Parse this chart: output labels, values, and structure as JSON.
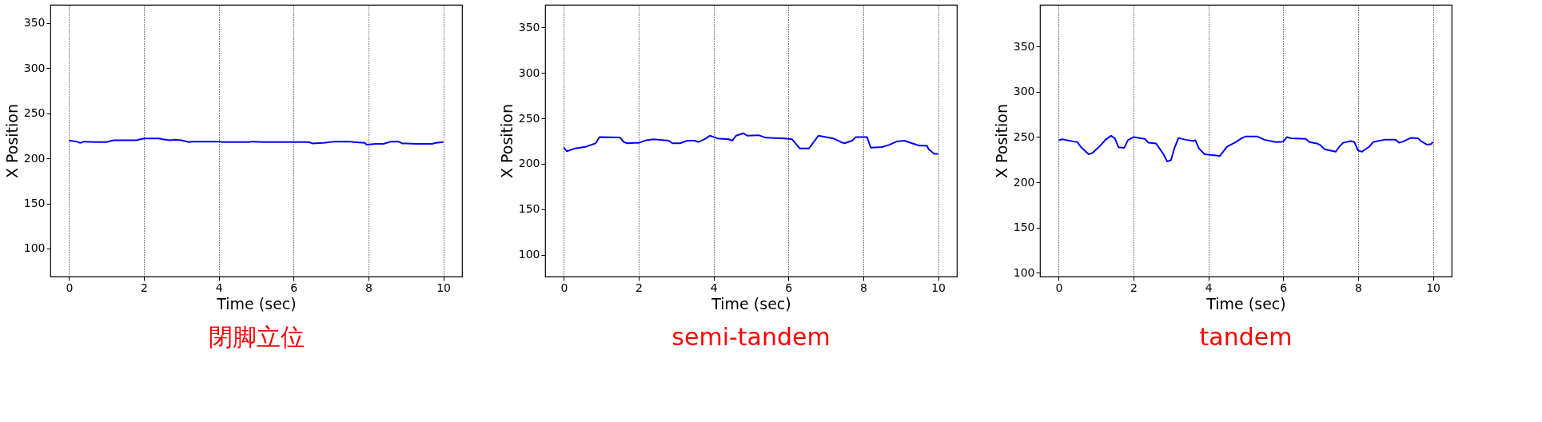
{
  "chart_data": [
    {
      "type": "line",
      "title": "閉脚立位",
      "xlabel": "Time (sec)",
      "ylabel": "X Position",
      "xlim": [
        -0.5,
        10.5
      ],
      "ylim": [
        69,
        370
      ],
      "xticks": [
        0,
        2,
        4,
        6,
        8,
        10
      ],
      "yticks": [
        100,
        150,
        200,
        250,
        300,
        350
      ],
      "grid": "x",
      "x": [
        0,
        0.2,
        0.3,
        0.4,
        0.7,
        1.0,
        1.1,
        1.2,
        1.8,
        2.0,
        2.4,
        2.5,
        2.7,
        2.8,
        3.0,
        3.2,
        3.3,
        4.0,
        4.1,
        4.8,
        4.9,
        5.2,
        6.4,
        6.5,
        6.8,
        7.1,
        7.5,
        7.6,
        7.9,
        7.95,
        8.2,
        8.4,
        8.6,
        8.8,
        8.9,
        9.3,
        9.7,
        9.8,
        10
      ],
      "series": [
        {
          "color": "#0000ff",
          "values": [
            219.8,
            218.5,
            217,
            218.5,
            218,
            218,
            219,
            220,
            220,
            222,
            222,
            221,
            220,
            220.5,
            220,
            218,
            218.5,
            218.5,
            218,
            218,
            218.5,
            218,
            218,
            216.5,
            217,
            218.5,
            218.5,
            218,
            217,
            215,
            216,
            216,
            218.5,
            218.5,
            216.5,
            216,
            216,
            217,
            218
          ]
        }
      ]
    },
    {
      "type": "line",
      "title": "semi-tandem",
      "xlabel": "Time (sec)",
      "ylabel": "X Position",
      "xlim": [
        -0.5,
        10.5
      ],
      "ylim": [
        76,
        375
      ],
      "xticks": [
        0,
        2,
        4,
        6,
        8,
        10
      ],
      "yticks": [
        100,
        150,
        200,
        250,
        300,
        350
      ],
      "grid": "x",
      "x": [
        0,
        0.08,
        0.3,
        0.6,
        0.85,
        0.95,
        1.5,
        1.6,
        1.7,
        1.9,
        2.0,
        2.2,
        2.4,
        2.8,
        2.9,
        3.1,
        3.3,
        3.5,
        3.6,
        3.8,
        3.9,
        4.1,
        4.4,
        4.5,
        4.6,
        4.8,
        4.9,
        5.2,
        5.4,
        5.9,
        6.1,
        6.3,
        6.55,
        6.8,
        7.2,
        7.4,
        7.5,
        7.7,
        7.8,
        8.1,
        8.2,
        8.5,
        8.7,
        8.9,
        9.1,
        9.3,
        9.5,
        9.7,
        9.75,
        9.9,
        10
      ],
      "series": [
        {
          "color": "#0000ff",
          "values": [
            217.8,
            213.8,
            217,
            219,
            222.6,
            229.4,
            229,
            224,
            222.6,
            223,
            223,
            226,
            227,
            225.5,
            222.6,
            222.6,
            225.5,
            225.5,
            224,
            228,
            231,
            228,
            227,
            225.5,
            231,
            233.6,
            231,
            231.5,
            228.7,
            228,
            227,
            217,
            217,
            231,
            228,
            224,
            222.6,
            225.5,
            229.4,
            229.4,
            217.8,
            218.5,
            221,
            224.7,
            225.5,
            222.6,
            220,
            220,
            215.8,
            211,
            211
          ]
        }
      ]
    },
    {
      "type": "line",
      "title": "tandem",
      "xlabel": "Time (sec)",
      "ylabel": "X Position",
      "xlim": [
        -0.5,
        10.5
      ],
      "ylim": [
        96,
        396
      ],
      "xticks": [
        0,
        2,
        4,
        6,
        8,
        10
      ],
      "yticks": [
        100,
        150,
        200,
        250,
        300,
        350
      ],
      "grid": "x",
      "x": [
        0,
        0.1,
        0.4,
        0.5,
        0.6,
        0.8,
        0.9,
        1.1,
        1.25,
        1.4,
        1.5,
        1.6,
        1.75,
        1.85,
        2.0,
        2.3,
        2.4,
        2.6,
        2.8,
        2.9,
        3.0,
        3.1,
        3.2,
        3.4,
        3.6,
        3.65,
        3.75,
        3.9,
        4.2,
        4.3,
        4.5,
        4.7,
        4.9,
        5.0,
        5.3,
        5.5,
        5.8,
        6.0,
        6.1,
        6.2,
        6.6,
        6.7,
        6.9,
        7.0,
        7.1,
        7.4,
        7.5,
        7.6,
        7.8,
        7.9,
        8.0,
        8.1,
        8.3,
        8.4,
        8.7,
        9.0,
        9.1,
        9.2,
        9.4,
        9.6,
        9.7,
        9.85,
        9.95,
        10
      ],
      "series": [
        {
          "color": "#0000ff",
          "values": [
            246.5,
            247.5,
            245,
            244.4,
            238.7,
            231,
            232.4,
            240,
            247,
            251.4,
            248.6,
            238.7,
            238,
            246.5,
            250,
            248,
            243.7,
            243,
            231,
            223,
            224.6,
            238.7,
            249,
            247,
            245.6,
            246.5,
            237.3,
            231,
            229.6,
            229,
            239.4,
            243.7,
            249,
            250.7,
            250.7,
            247,
            244.4,
            245,
            250,
            248.6,
            248,
            244.4,
            243,
            240.8,
            236.6,
            233.8,
            239.4,
            243.7,
            245.6,
            244.4,
            235.2,
            233.8,
            239.4,
            244.4,
            247,
            247,
            243.7,
            245,
            249,
            248.6,
            245,
            241.5,
            242.3,
            244.4
          ]
        }
      ]
    }
  ]
}
